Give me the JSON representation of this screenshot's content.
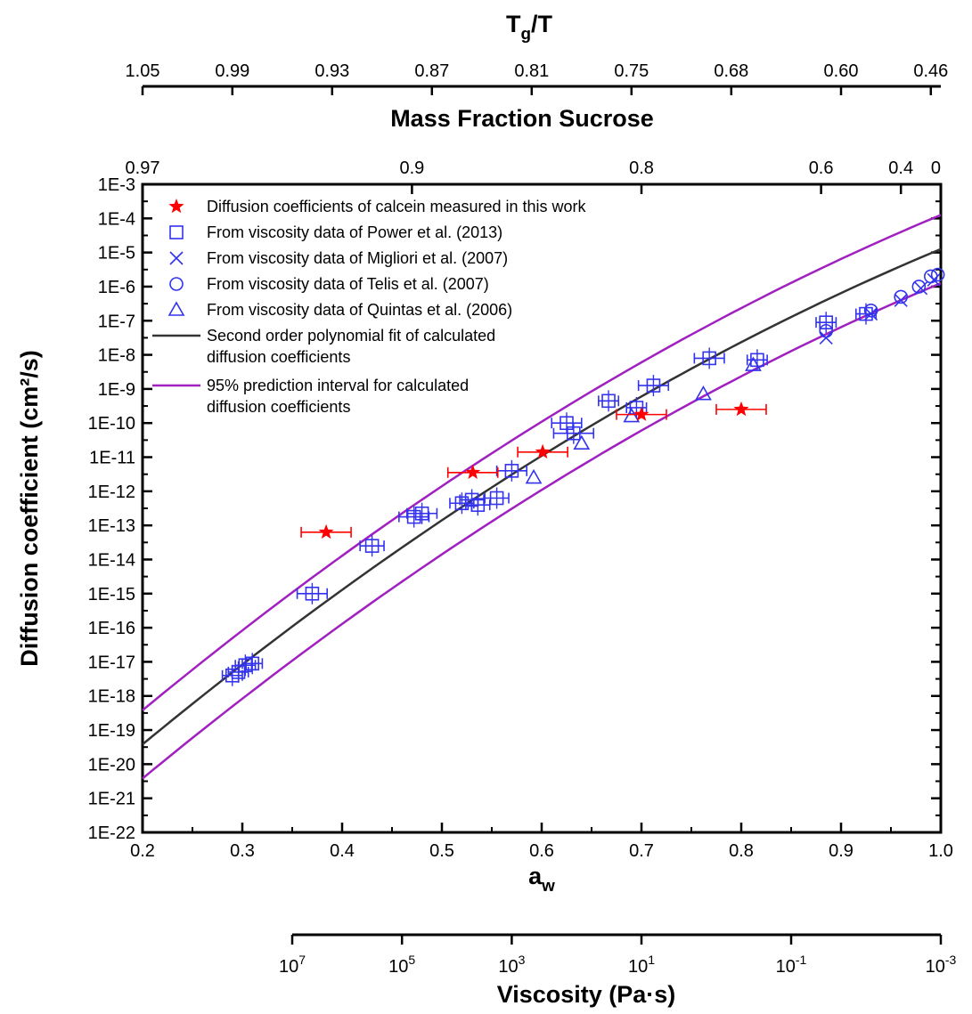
{
  "chart_data": {
    "type": "scatter",
    "x_axis": {
      "label": "a",
      "label_sub": "w",
      "range": [
        0.2,
        1.0
      ],
      "ticks": [
        "0.2",
        "0.3",
        "0.4",
        "0.5",
        "0.6",
        "0.7",
        "0.8",
        "0.9",
        "1.0"
      ]
    },
    "y_axis": {
      "label": "Diffusion coefficient (cm²/s)",
      "scale": "log",
      "range_exp": [
        -22,
        -3
      ],
      "ticks": [
        "1E-3",
        "1E-4",
        "1E-5",
        "1E-6",
        "1E-7",
        "1E-8",
        "1E-9",
        "1E-10",
        "1E-11",
        "1E-12",
        "1E-13",
        "1E-14",
        "1E-15",
        "1E-16",
        "1E-17",
        "1E-18",
        "1E-19",
        "1E-20",
        "1E-21",
        "1E-22"
      ]
    },
    "top_axis_tg": {
      "label": "T",
      "label_sub": "g",
      "label_tail": "/T",
      "ticks": [
        {
          "aw": 0.2,
          "label": "1.05"
        },
        {
          "aw": 0.29,
          "label": "0.99"
        },
        {
          "aw": 0.39,
          "label": "0.93"
        },
        {
          "aw": 0.49,
          "label": "0.87"
        },
        {
          "aw": 0.59,
          "label": "0.81"
        },
        {
          "aw": 0.69,
          "label": "0.75"
        },
        {
          "aw": 0.79,
          "label": "0.68"
        },
        {
          "aw": 0.9,
          "label": "0.60"
        },
        {
          "aw": 0.99,
          "label": "0.46"
        }
      ]
    },
    "top_axis_mass": {
      "label": "Mass Fraction Sucrose",
      "ticks": [
        {
          "aw": 0.2,
          "label": "0.97"
        },
        {
          "aw": 0.47,
          "label": "0.9"
        },
        {
          "aw": 0.7,
          "label": "0.8"
        },
        {
          "aw": 0.88,
          "label": "0.6"
        },
        {
          "aw": 0.96,
          "label": "0.4"
        },
        {
          "aw": 1.0,
          "label": "0"
        }
      ]
    },
    "viscosity_axis": {
      "label": "Viscosity (Pa·s)",
      "ticks": [
        {
          "aw": 0.35,
          "base": "10",
          "exp": "7"
        },
        {
          "aw": 0.46,
          "base": "10",
          "exp": "5"
        },
        {
          "aw": 0.57,
          "base": "10",
          "exp": "3"
        },
        {
          "aw": 0.7,
          "base": "10",
          "exp": "1"
        },
        {
          "aw": 0.85,
          "base": "10",
          "exp": "-1"
        },
        {
          "aw": 1.0,
          "base": "10",
          "exp": "-3"
        }
      ]
    },
    "legend": [
      {
        "key": "calcein",
        "label": "Diffusion coefficients of calcein measured in this work"
      },
      {
        "key": "power",
        "label": "From viscosity data of Power et al. (2013)"
      },
      {
        "key": "migliori",
        "label": "From viscosity data of Migliori et al. (2007)"
      },
      {
        "key": "telis",
        "label": "From viscosity data of Telis et al. (2007)"
      },
      {
        "key": "quintas",
        "label": "From viscosity data of Quintas et al. (2006)"
      },
      {
        "key": "fit",
        "label": "Second order polynomial fit of calculated",
        "label2": "diffusion coefficients"
      },
      {
        "key": "pi",
        "label": "95% prediction interval for calculated",
        "label2": "diffusion coefficients"
      }
    ],
    "colors": {
      "calcein": "#ff0000",
      "calculated": "#3333ee",
      "fit": "#333333",
      "pi": "#a020c0"
    },
    "series": [
      {
        "key": "calcein",
        "points": [
          [
            0.384,
            -13.2,
            0.025
          ],
          [
            0.531,
            -11.45,
            0.025
          ],
          [
            0.601,
            -10.85,
            0.025
          ],
          [
            0.7,
            -9.75,
            0.025
          ],
          [
            0.8,
            -9.6,
            0.025
          ]
        ]
      },
      {
        "key": "power",
        "points": [
          [
            0.29,
            -17.4,
            0.01
          ],
          [
            0.296,
            -17.3,
            0.01
          ],
          [
            0.303,
            -17.1,
            0.01
          ],
          [
            0.31,
            -17.05,
            0.01
          ],
          [
            0.37,
            -15.0,
            0.015
          ],
          [
            0.43,
            -13.6,
            0.012
          ],
          [
            0.472,
            -12.75,
            0.015
          ],
          [
            0.48,
            -12.65,
            0.015
          ],
          [
            0.52,
            -12.35,
            0.012
          ],
          [
            0.53,
            -12.25,
            0.012
          ],
          [
            0.536,
            -12.4,
            0.012
          ],
          [
            0.555,
            -12.2,
            0.012
          ],
          [
            0.57,
            -11.4,
            0.015
          ],
          [
            0.625,
            -10.0,
            0.015
          ],
          [
            0.632,
            -10.3,
            0.02
          ],
          [
            0.667,
            -9.35,
            0.01
          ],
          [
            0.695,
            -9.55,
            0.01
          ],
          [
            0.712,
            -8.9,
            0.015
          ],
          [
            0.768,
            -8.1,
            0.015
          ],
          [
            0.816,
            -8.15,
            0.01
          ],
          [
            0.885,
            -7.05,
            0.01
          ],
          [
            0.925,
            -6.8,
            0.01
          ]
        ]
      },
      {
        "key": "migliori",
        "points": [
          [
            0.885,
            -7.5
          ],
          [
            0.93,
            -6.8
          ],
          [
            0.96,
            -6.4
          ],
          [
            0.98,
            -6.05
          ],
          [
            0.993,
            -5.8
          ]
        ]
      },
      {
        "key": "telis",
        "points": [
          [
            0.885,
            -7.3
          ],
          [
            0.93,
            -6.7
          ],
          [
            0.96,
            -6.3
          ],
          [
            0.978,
            -6.0
          ],
          [
            0.99,
            -5.7
          ],
          [
            0.997,
            -5.65
          ]
        ]
      },
      {
        "key": "quintas",
        "points": [
          [
            0.592,
            -11.6
          ],
          [
            0.64,
            -10.6
          ],
          [
            0.69,
            -9.8
          ],
          [
            0.762,
            -9.15
          ],
          [
            0.812,
            -8.3
          ]
        ]
      }
    ],
    "fit": {
      "a2": -7.5,
      "a1": 27.15,
      "a0": -24.55
    },
    "prediction_offset": 1.0,
    "grid": false,
    "legend_position": "top-left"
  }
}
